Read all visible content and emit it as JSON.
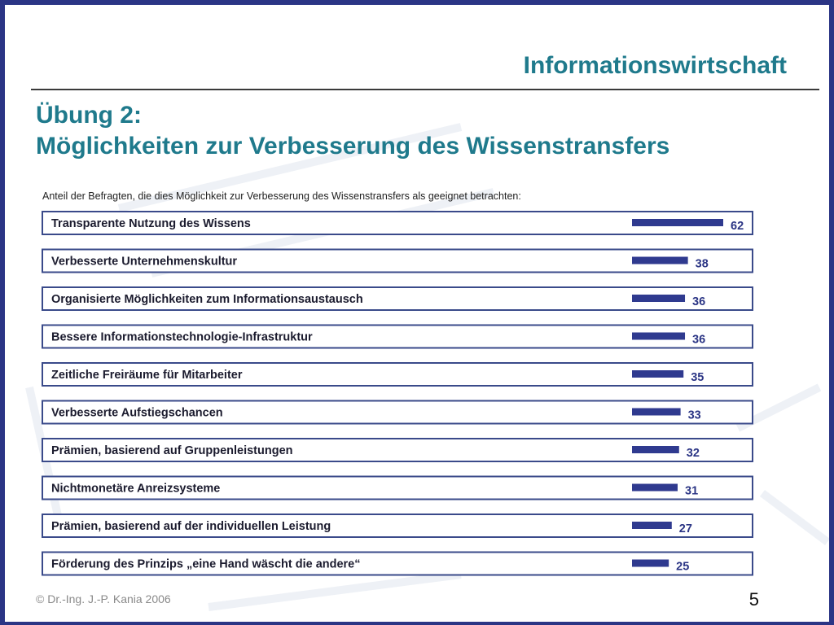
{
  "header": {
    "title": "Informationswirtschaft"
  },
  "slide": {
    "title_line1": "Übung 2:",
    "title_line2": "Möglichkeiten zur Verbesserung des  Wissenstransfers"
  },
  "footer": {
    "copyright": "©  Dr.-Ing. J.-P. Kania 2006",
    "page_number": "5"
  },
  "colors": {
    "accent": "#1f7a8c",
    "bar": "#2f3a8f",
    "frame": "#2b3585"
  },
  "chart_data": {
    "type": "bar",
    "orientation": "horizontal",
    "title": "Anteil der Befragten, die dies Möglichkeit zur Verbesserung des Wissenstransfers als geeignet betrachten:",
    "categories": [
      "Transparente Nutzung des Wissens",
      "Verbesserte Unternehmenskultur",
      "Organisierte Möglichkeiten zum Informationsaustausch",
      "Bessere Informationstechnologie-Infrastruktur",
      "Zeitliche Freiräume für Mitarbeiter",
      "Verbesserte Aufstiegschancen",
      "Prämien, basierend auf Gruppenleistungen",
      "Nichtmonetäre Anreizsysteme",
      "Prämien, basierend auf der individuellen Leistung",
      "Förderung des Prinzips „eine Hand wäscht die andere“"
    ],
    "values": [
      62,
      38,
      36,
      36,
      35,
      33,
      32,
      31,
      27,
      25
    ],
    "grid": false,
    "legend": "none"
  }
}
